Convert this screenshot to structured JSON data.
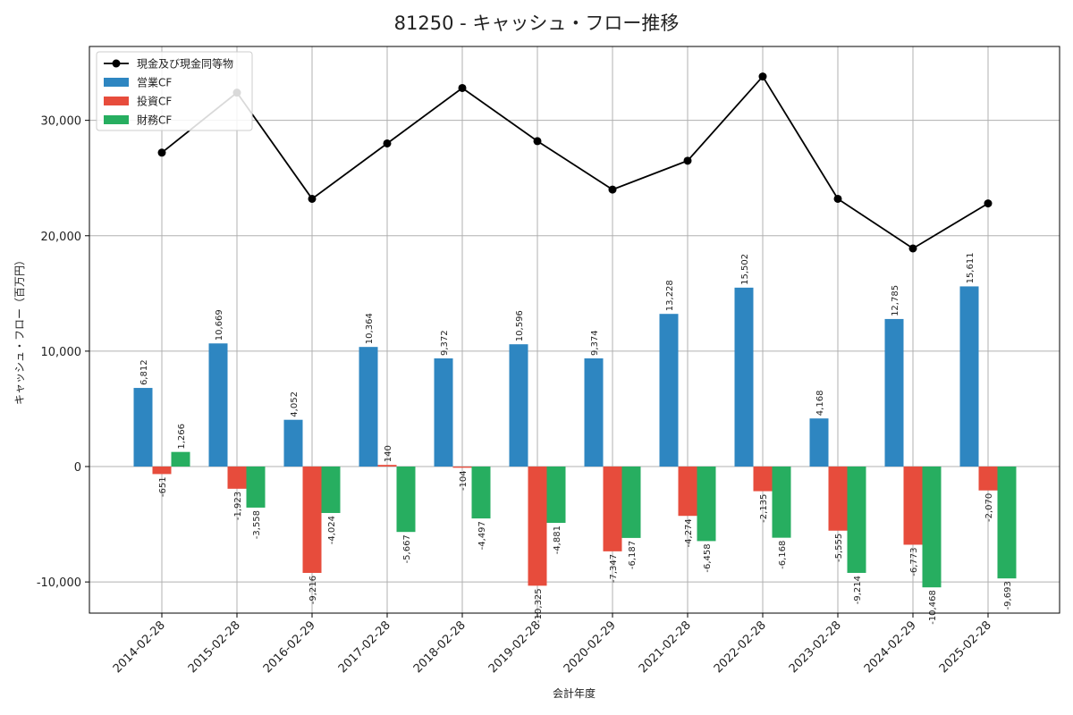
{
  "chart_data": {
    "type": "bar+line",
    "title": "81250 - キャッシュ・フロー推移",
    "xlabel": "会計年度",
    "ylabel": "キャッシュ・フロー（百万円）",
    "ylim": [
      -12700,
      36400
    ],
    "yticks": [
      -10000,
      0,
      10000,
      20000,
      30000
    ],
    "ytick_labels": [
      "-10,000",
      "0",
      "10,000",
      "20,000",
      "30,000"
    ],
    "grid": true,
    "legend_position": "top-left",
    "categories": [
      "2014-02-28",
      "2015-02-28",
      "2016-02-29",
      "2017-02-28",
      "2018-02-28",
      "2019-02-28",
      "2020-02-29",
      "2021-02-28",
      "2022-02-28",
      "2023-02-28",
      "2024-02-29",
      "2025-02-28"
    ],
    "series": [
      {
        "name": "営業CF",
        "kind": "bar",
        "color": "#2E86C1",
        "values": [
          6812,
          10669,
          4052,
          10364,
          9372,
          10596,
          9374,
          13228,
          15502,
          4168,
          12785,
          15611
        ],
        "labels": [
          "6,812",
          "10,669",
          "4,052",
          "10,364",
          "9,372",
          "10,596",
          "9,374",
          "13,228",
          "15,502",
          "4,168",
          "12,785",
          "15,611"
        ]
      },
      {
        "name": "投資CF",
        "kind": "bar",
        "color": "#E74C3C",
        "values": [
          -651,
          -1923,
          -9216,
          140,
          -104,
          -10325,
          -7347,
          -4274,
          -2135,
          -5555,
          -6773,
          -2070
        ],
        "labels": [
          "-651",
          "-1,923",
          "-9,216",
          "140",
          "-104",
          "-10,325",
          "-7,347",
          "-4,274",
          "-2,135",
          "-5,555",
          "-6,773",
          "-2,070"
        ]
      },
      {
        "name": "財務CF",
        "kind": "bar",
        "color": "#27AE60",
        "values": [
          1266,
          -3558,
          -4024,
          -5667,
          -4497,
          -4881,
          -6187,
          -6458,
          -6168,
          -9214,
          -10468,
          -9693
        ],
        "labels": [
          "1,266",
          "-3,558",
          "-4,024",
          "-5,667",
          "-4,497",
          "-4,881",
          "-6,187",
          "-6,458",
          "-6,168",
          "-9,214",
          "-10,468",
          "-9,693"
        ]
      },
      {
        "name": "現金及び現金同等物",
        "kind": "line",
        "color": "#000000",
        "values": [
          27200,
          32400,
          23200,
          28000,
          32800,
          28200,
          24000,
          26500,
          33800,
          23200,
          18900,
          22800
        ]
      }
    ]
  }
}
